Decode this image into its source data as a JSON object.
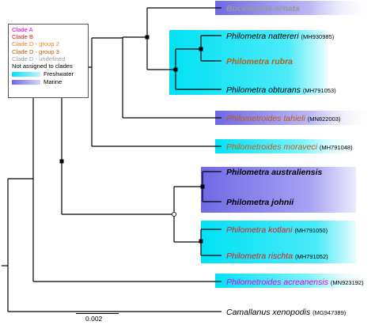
{
  "legend": {
    "clades": [
      {
        "label": "Clade A",
        "color": "#e000e0"
      },
      {
        "label": "Clade B",
        "color": "#e01818"
      },
      {
        "label": "Clade D - group 2",
        "color": "#f08020"
      },
      {
        "label": "Clade D - group 3",
        "color": "#c05a10"
      },
      {
        "label": "Clade D - undefined",
        "color": "#9a9a9a"
      },
      {
        "label": "Not assigned to clades",
        "color": "#000000"
      }
    ],
    "habitats": [
      {
        "label": "Freshwater",
        "color": "#00e1f5"
      },
      {
        "label": "Marine",
        "color": "#7b74e8"
      }
    ]
  },
  "taxa": [
    {
      "name": "Buckleyella ornata",
      "accession": "",
      "color": "#9a9a9a",
      "bold": true,
      "habitat": "Marine"
    },
    {
      "name": "Philometra nattereri",
      "accession": "(MH930985)",
      "color": "#000000",
      "bold": false,
      "habitat": "Freshwater"
    },
    {
      "name": "Philometra rubra",
      "accession": "",
      "color": "#c05a10",
      "bold": true,
      "habitat": "Freshwater"
    },
    {
      "name": "Philometra obturans",
      "accession": "(MH791053)",
      "color": "#000000",
      "bold": false,
      "habitat": "Freshwater"
    },
    {
      "name": "Philometroides tahieli",
      "accession": "(MN822003)",
      "color": "#c05a10",
      "bold": false,
      "habitat": "Marine"
    },
    {
      "name": "Philometroides moraveci",
      "accession": "(MH791048)",
      "color": "#c05a10",
      "bold": false,
      "habitat": "Freshwater"
    },
    {
      "name": "Philometra australiensis",
      "accession": "",
      "color": "#000000",
      "bold": true,
      "habitat": "Marine"
    },
    {
      "name": "Philometra johnii",
      "accession": "",
      "color": "#000000",
      "bold": true,
      "habitat": "Marine"
    },
    {
      "name": "Philometra kotlani",
      "accession": "(MH791050)",
      "color": "#e01818",
      "bold": false,
      "habitat": "Freshwater"
    },
    {
      "name": "Philometra rischta",
      "accession": "(MH791052)",
      "color": "#e01818",
      "bold": false,
      "habitat": "Freshwater"
    },
    {
      "name": "Philometroides acreanensis",
      "accession": "(MN923192)",
      "color": "#e000e0",
      "bold": false,
      "habitat": "Freshwater"
    },
    {
      "name": "Camallanus xenopodis",
      "accession": "(MG947389)",
      "color": "#000000",
      "bold": false,
      "habitat": ""
    }
  ],
  "scale": {
    "label": "0.002"
  }
}
